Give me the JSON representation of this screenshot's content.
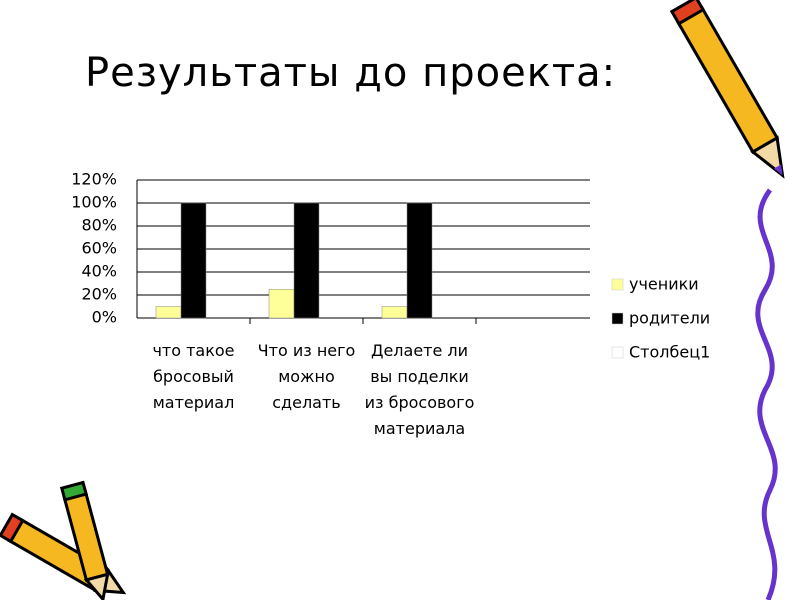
{
  "chart_data": {
    "type": "bar",
    "title": "Результаты до проекта:",
    "categories": [
      "что такое бросовый материал",
      "Что из него можно сделать",
      "Делаете ли вы поделки из бросового материала"
    ],
    "series": [
      {
        "name": "ученики",
        "color": "#ffff99",
        "values": [
          10,
          25,
          10
        ]
      },
      {
        "name": "родители",
        "color": "#000000",
        "values": [
          100,
          100,
          100
        ]
      },
      {
        "name": "Столбец1",
        "color": "#ffffff",
        "values": [
          null,
          null,
          null
        ]
      }
    ],
    "ylim": [
      0,
      120
    ],
    "yticks": [
      {
        "value": 0,
        "label": "0%"
      },
      {
        "value": 20,
        "label": "20%"
      },
      {
        "value": 40,
        "label": "40%"
      },
      {
        "value": 60,
        "label": "60%"
      },
      {
        "value": 80,
        "label": "80%"
      },
      {
        "value": 100,
        "label": "100%"
      },
      {
        "value": 120,
        "label": "120%"
      }
    ],
    "grid": true,
    "legend": "right"
  }
}
